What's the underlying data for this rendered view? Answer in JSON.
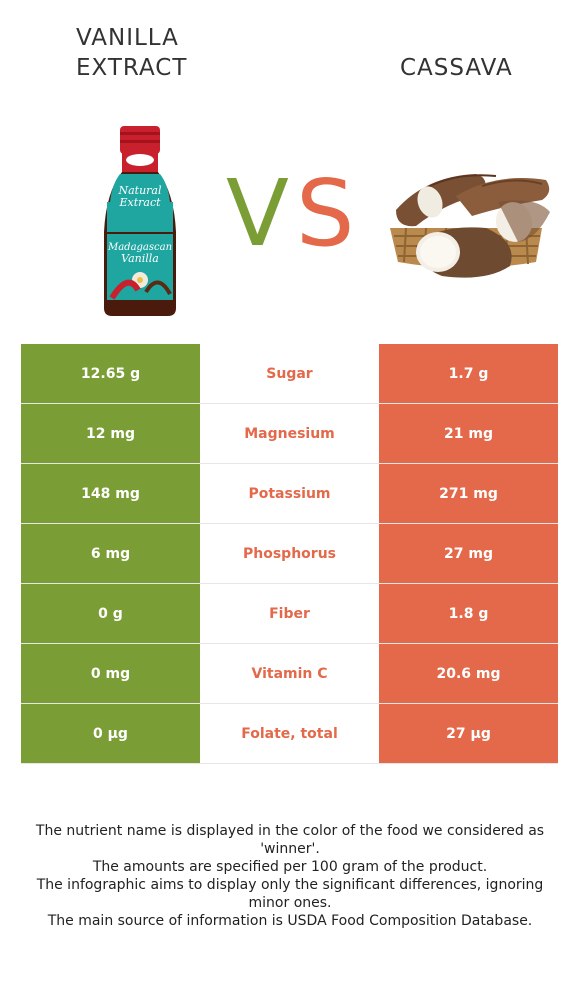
{
  "left_food": {
    "title": "Vanilla extract",
    "color": "#7a9e35",
    "image_icon": "vanilla-extract-bottle"
  },
  "right_food": {
    "title": "Cassava",
    "color": "#e3694a",
    "image_icon": "cassava-roots-basket"
  },
  "vs": {
    "v": "V",
    "s": "S"
  },
  "rows": [
    {
      "left": "12.65 g",
      "nutrient": "Sugar",
      "right": "1.7 g"
    },
    {
      "left": "12 mg",
      "nutrient": "Magnesium",
      "right": "21 mg"
    },
    {
      "left": "148 mg",
      "nutrient": "Potassium",
      "right": "271 mg"
    },
    {
      "left": "6 mg",
      "nutrient": "Phosphorus",
      "right": "27 mg"
    },
    {
      "left": "0 g",
      "nutrient": "Fiber",
      "right": "1.8 g"
    },
    {
      "left": "0 mg",
      "nutrient": "Vitamin C",
      "right": "20.6 mg"
    },
    {
      "left": "0 µg",
      "nutrient": "Folate, total",
      "right": "27 µg"
    }
  ],
  "footer": {
    "line1": "The nutrient name is displayed in the color of the food we considered as 'winner'.",
    "line2": "The amounts are specified per 100 gram of the product.",
    "line3": "The infographic aims to display only the significant differences, ignoring minor ones.",
    "line4": "The main source of information is USDA Food Composition Database."
  }
}
